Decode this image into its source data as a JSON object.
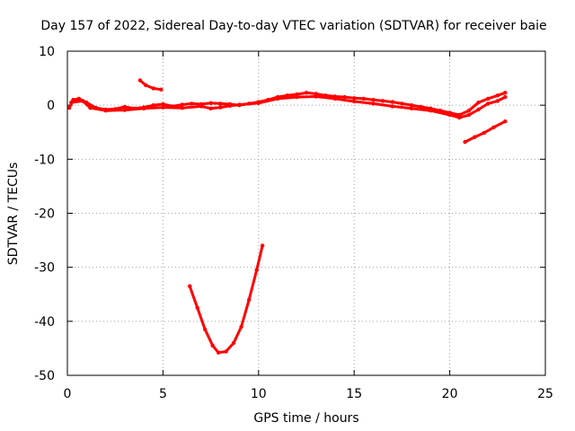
{
  "chart_data": {
    "type": "line",
    "title": "Day 157 of 2022, Sidereal Day-to-day VTEC variation (SDTVAR) for receiver baie",
    "xlabel": "GPS time / hours",
    "ylabel": "SDTVAR / TECUs",
    "xlim": [
      0,
      25
    ],
    "ylim": [
      -50,
      10
    ],
    "grid": true,
    "xticks": [
      0,
      5,
      10,
      15,
      20,
      25
    ],
    "yticks": [
      10,
      0,
      -10,
      -20,
      -30,
      -40,
      -50
    ],
    "color": "#ff0000",
    "series": [
      {
        "name": "track-main-upper",
        "points": [
          [
            0.1,
            -0.5
          ],
          [
            0.3,
            1.0
          ],
          [
            0.6,
            1.2
          ],
          [
            1.0,
            0.5
          ],
          [
            1.5,
            -0.5
          ],
          [
            2.0,
            -0.8
          ],
          [
            2.5,
            -0.7
          ],
          [
            3.0,
            -0.3
          ],
          [
            3.5,
            -0.6
          ],
          [
            4.0,
            -0.4
          ],
          [
            4.5,
            0.0
          ],
          [
            5.0,
            0.2
          ],
          [
            5.5,
            -0.2
          ],
          [
            6.0,
            0.1
          ],
          [
            6.5,
            0.3
          ],
          [
            7.0,
            0.2
          ],
          [
            7.5,
            0.4
          ],
          [
            8.0,
            0.3
          ],
          [
            8.5,
            0.2
          ],
          [
            9.0,
            0.0
          ],
          [
            9.5,
            0.3
          ],
          [
            10.0,
            0.6
          ],
          [
            10.5,
            1.0
          ],
          [
            11.0,
            1.5
          ],
          [
            11.5,
            1.8
          ],
          [
            12.0,
            2.0
          ],
          [
            12.5,
            2.3
          ],
          [
            13.0,
            2.1
          ],
          [
            13.5,
            1.8
          ],
          [
            14.0,
            1.6
          ],
          [
            14.5,
            1.5
          ],
          [
            15.0,
            1.3
          ],
          [
            15.5,
            1.2
          ],
          [
            16.0,
            1.0
          ],
          [
            16.5,
            0.8
          ],
          [
            17.0,
            0.6
          ],
          [
            17.5,
            0.3
          ],
          [
            18.0,
            0.0
          ],
          [
            18.5,
            -0.3
          ],
          [
            19.0,
            -0.6
          ],
          [
            19.5,
            -1.0
          ],
          [
            20.0,
            -1.4
          ],
          [
            20.5,
            -1.8
          ],
          [
            21.0,
            -1.0
          ],
          [
            21.5,
            0.5
          ],
          [
            22.0,
            1.2
          ],
          [
            22.5,
            1.8
          ],
          [
            22.9,
            2.3
          ]
        ]
      },
      {
        "name": "track-main-lower",
        "points": [
          [
            0.2,
            0.5
          ],
          [
            0.8,
            0.8
          ],
          [
            1.2,
            -0.5
          ],
          [
            2.0,
            -1.0
          ],
          [
            3.0,
            -0.9
          ],
          [
            4.0,
            -0.6
          ],
          [
            5.0,
            -0.4
          ],
          [
            6.0,
            -0.5
          ],
          [
            7.0,
            -0.2
          ],
          [
            7.5,
            -0.6
          ],
          [
            8.0,
            -0.4
          ],
          [
            8.5,
            -0.1
          ],
          [
            9.0,
            0.1
          ],
          [
            10.0,
            0.4
          ],
          [
            11.0,
            1.2
          ],
          [
            12.0,
            1.5
          ],
          [
            13.0,
            1.6
          ],
          [
            14.0,
            1.2
          ],
          [
            15.0,
            0.7
          ],
          [
            16.0,
            0.3
          ],
          [
            17.0,
            -0.2
          ],
          [
            18.0,
            -0.6
          ],
          [
            19.0,
            -1.0
          ],
          [
            20.0,
            -1.8
          ],
          [
            20.5,
            -2.3
          ],
          [
            21.0,
            -1.8
          ],
          [
            21.5,
            -0.8
          ],
          [
            22.0,
            0.3
          ],
          [
            22.5,
            0.8
          ],
          [
            22.9,
            1.5
          ]
        ]
      },
      {
        "name": "track-short-upper",
        "points": [
          [
            3.8,
            4.6
          ],
          [
            4.1,
            3.7
          ],
          [
            4.5,
            3.1
          ],
          [
            4.9,
            2.9
          ]
        ]
      },
      {
        "name": "track-right-lower",
        "points": [
          [
            20.8,
            -6.8
          ],
          [
            21.3,
            -5.9
          ],
          [
            21.8,
            -5.1
          ],
          [
            22.3,
            -4.1
          ],
          [
            22.9,
            -3.0
          ]
        ]
      },
      {
        "name": "track-v-shape",
        "points": [
          [
            6.4,
            -33.5
          ],
          [
            6.8,
            -37.5
          ],
          [
            7.2,
            -41.5
          ],
          [
            7.6,
            -44.5
          ],
          [
            7.9,
            -45.8
          ],
          [
            8.3,
            -45.6
          ],
          [
            8.7,
            -44.0
          ],
          [
            9.1,
            -41.0
          ],
          [
            9.5,
            -36.0
          ],
          [
            9.9,
            -30.5
          ],
          [
            10.2,
            -26.0
          ]
        ]
      }
    ]
  }
}
